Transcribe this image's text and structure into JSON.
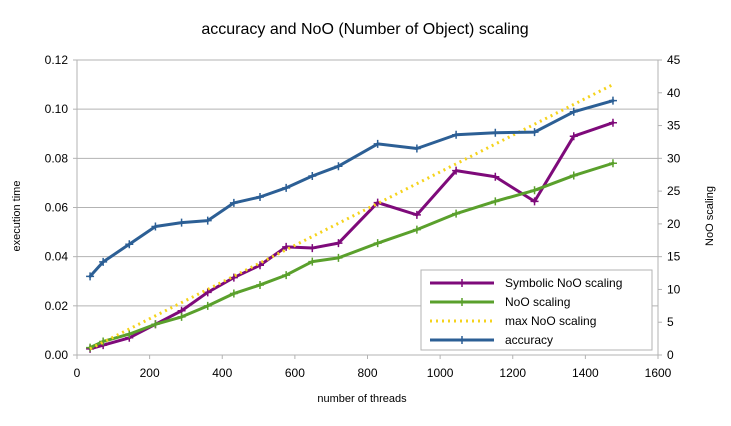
{
  "chart_data": {
    "type": "line",
    "title": "accuracy and NoO (Number of Object) scaling",
    "xlabel": "number of threads",
    "ylabel": "execution time",
    "y2label": "NoO scaling",
    "xlim": [
      0,
      1600
    ],
    "ylim": [
      0,
      0.12
    ],
    "y2lim": [
      0,
      45
    ],
    "x_ticks": [
      "0",
      "200",
      "400",
      "600",
      "800",
      "1000",
      "1200",
      "1400",
      "1600"
    ],
    "y_ticks": [
      "0.00",
      "0.02",
      "0.04",
      "0.06",
      "0.08",
      "0.10",
      "0.12"
    ],
    "y2_ticks": [
      "0",
      "5",
      "10",
      "15",
      "20",
      "25",
      "30",
      "35",
      "40",
      "45"
    ],
    "grid": "horizontal",
    "legend_position": "bottom-right",
    "series": [
      {
        "name": "Symbolic NoO scaling",
        "color": "#7e0a7a",
        "axis": "left",
        "style": "solid",
        "markers": true,
        "x": [
          36,
          72,
          144,
          216,
          288,
          360,
          432,
          504,
          576,
          648,
          720,
          828,
          936,
          1044,
          1152,
          1260,
          1368,
          1476
        ],
        "y": [
          0.0025,
          0.004,
          0.007,
          0.0125,
          0.018,
          0.0255,
          0.0315,
          0.0365,
          0.044,
          0.0435,
          0.0455,
          0.062,
          0.057,
          0.075,
          0.0725,
          0.0625,
          0.089,
          0.0945
        ]
      },
      {
        "name": "NoO scaling",
        "color": "#5aa02c",
        "axis": "left",
        "style": "solid",
        "markers": true,
        "x": [
          36,
          72,
          144,
          216,
          288,
          360,
          432,
          504,
          576,
          648,
          720,
          828,
          936,
          1044,
          1152,
          1260,
          1368,
          1476
        ],
        "y": [
          0.003,
          0.0055,
          0.0085,
          0.0125,
          0.0155,
          0.02,
          0.025,
          0.0285,
          0.0325,
          0.038,
          0.0395,
          0.0455,
          0.051,
          0.0575,
          0.0625,
          0.067,
          0.073,
          0.078
        ]
      },
      {
        "name": "max NoO scaling",
        "color": "#f5d31c",
        "axis": "left",
        "style": "dotted",
        "markers": false,
        "x": [
          36,
          1476
        ],
        "y": [
          0.0025,
          0.11
        ]
      },
      {
        "name": "accuracy",
        "color": "#2c5f95",
        "axis": "right",
        "style": "solid",
        "markers": true,
        "x": [
          36,
          72,
          144,
          216,
          288,
          360,
          432,
          504,
          576,
          648,
          720,
          828,
          936,
          1044,
          1152,
          1260,
          1368,
          1476
        ],
        "y": [
          12.0,
          14.2,
          16.9,
          19.6,
          20.2,
          20.5,
          23.2,
          24.1,
          25.5,
          27.3,
          28.8,
          32.2,
          31.5,
          33.6,
          33.9,
          34.0,
          37.1,
          38.8
        ]
      }
    ]
  }
}
